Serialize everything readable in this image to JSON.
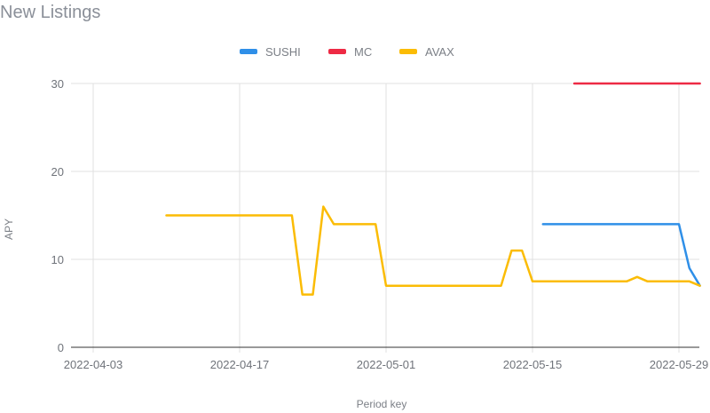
{
  "header": {
    "title": "New Listings"
  },
  "chart_data": {
    "type": "line",
    "xlabel": "Period key",
    "ylabel": "APY",
    "ylim": [
      0,
      30
    ],
    "yticks": [
      0,
      10,
      20,
      30
    ],
    "xlim": [
      "2022-04-03",
      "2022-05-30"
    ],
    "xticks": [
      "2022-04-03",
      "2022-04-17",
      "2022-05-01",
      "2022-05-15",
      "2022-05-29"
    ],
    "grid": true,
    "legend_position": "top-center",
    "series": [
      {
        "name": "SUSHI",
        "color": "#2f8fe8",
        "points": [
          [
            "2022-05-16",
            14
          ],
          [
            "2022-05-29",
            14
          ],
          [
            "2022-05-30",
            9
          ],
          [
            "2022-05-31",
            7
          ]
        ]
      },
      {
        "name": "MC",
        "color": "#ee2a44",
        "points": [
          [
            "2022-05-19",
            30
          ],
          [
            "2022-05-31",
            30
          ]
        ]
      },
      {
        "name": "AVAX",
        "color": "#fbbc05",
        "points": [
          [
            "2022-04-10",
            15
          ],
          [
            "2022-04-22",
            15
          ],
          [
            "2022-04-23",
            6
          ],
          [
            "2022-04-24",
            6
          ],
          [
            "2022-04-25",
            16
          ],
          [
            "2022-04-26",
            14
          ],
          [
            "2022-04-30",
            14
          ],
          [
            "2022-05-01",
            7
          ],
          [
            "2022-05-12",
            7
          ],
          [
            "2022-05-13",
            11
          ],
          [
            "2022-05-14",
            11
          ],
          [
            "2022-05-15",
            7.5
          ],
          [
            "2022-05-24",
            7.5
          ],
          [
            "2022-05-25",
            8
          ],
          [
            "2022-05-26",
            7.5
          ],
          [
            "2022-05-30",
            7.5
          ],
          [
            "2022-05-31",
            7
          ]
        ]
      }
    ]
  }
}
